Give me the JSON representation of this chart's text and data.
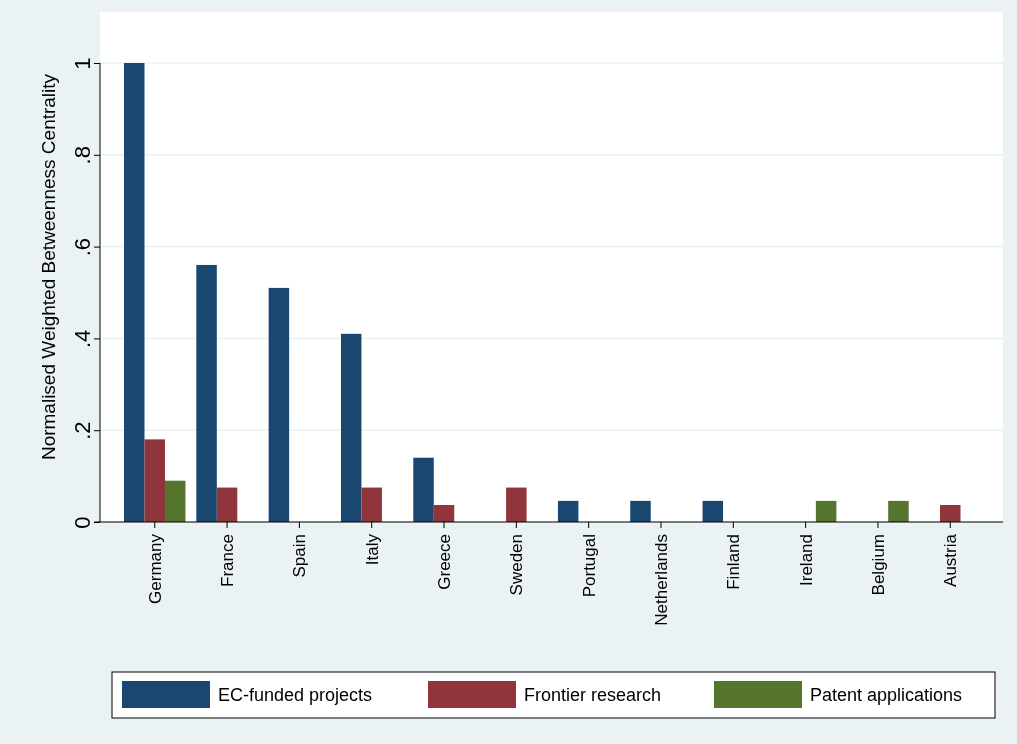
{
  "chart_data": {
    "type": "bar",
    "ylabel": "Normalised Weighted Betweenness Centrality",
    "categories": [
      "Germany",
      "France",
      "Spain",
      "Italy",
      "Greece",
      "Sweden",
      "Portugal",
      "Netherlands",
      "Finland",
      "Ireland",
      "Belgium",
      "Austria"
    ],
    "series": [
      {
        "name": "EC-funded projects",
        "color": "#1a476f",
        "values": [
          1.0,
          0.56,
          0.51,
          0.41,
          0.14,
          null,
          0.046,
          0.046,
          0.046,
          null,
          null,
          null
        ]
      },
      {
        "name": "Frontier research",
        "color": "#90353b",
        "values": [
          0.18,
          0.075,
          null,
          0.075,
          0.037,
          0.075,
          null,
          null,
          null,
          null,
          null,
          0.037
        ]
      },
      {
        "name": "Patent applications",
        "color": "#55752f",
        "values": [
          0.09,
          null,
          null,
          null,
          null,
          null,
          null,
          null,
          null,
          0.046,
          0.046,
          null
        ]
      }
    ],
    "ylim": [
      0,
      1
    ],
    "yticks": [
      0,
      {
        "value": 0.2,
        "label": ".2"
      },
      {
        "value": 0.4,
        "label": ".4"
      },
      {
        "value": 0.6,
        "label": ".6"
      },
      {
        "value": 0.8,
        "label": ".8"
      },
      1
    ],
    "grid": "y",
    "legend": "bottom"
  }
}
